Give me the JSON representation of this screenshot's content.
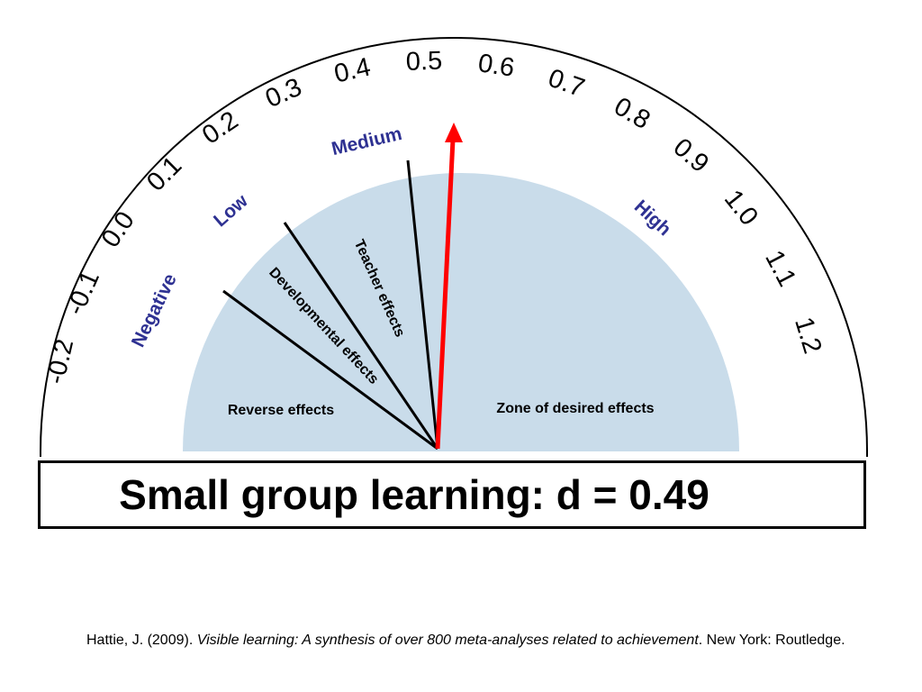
{
  "gauge": {
    "tick_labels": [
      "-0.2",
      "-0.1",
      "0.0",
      "0.1",
      "0.2",
      "0.3",
      "0.4",
      "0.5",
      "0.6",
      "0.7",
      "0.8",
      "0.9",
      "1.0",
      "1.1",
      "1.2"
    ],
    "zones": [
      "Negative",
      "Low",
      "Medium",
      "High"
    ],
    "sectors": {
      "reverse": "Reverse effects",
      "developmental": "Developmental effects",
      "teacher": "Teacher effects",
      "desired": "Zone of desired effects"
    },
    "needle_value": 0.49,
    "colors": {
      "fill": "#c9dcea",
      "needle": "#ff0000",
      "zone_text": "#2e3192"
    }
  },
  "title": "Small group learning: d = 0.49",
  "citation": {
    "author": "Hattie, J. (2009). ",
    "work": "Visible learning: A synthesis of over 800 meta-analyses related to achievement",
    "rest": ". New York: Routledge."
  }
}
